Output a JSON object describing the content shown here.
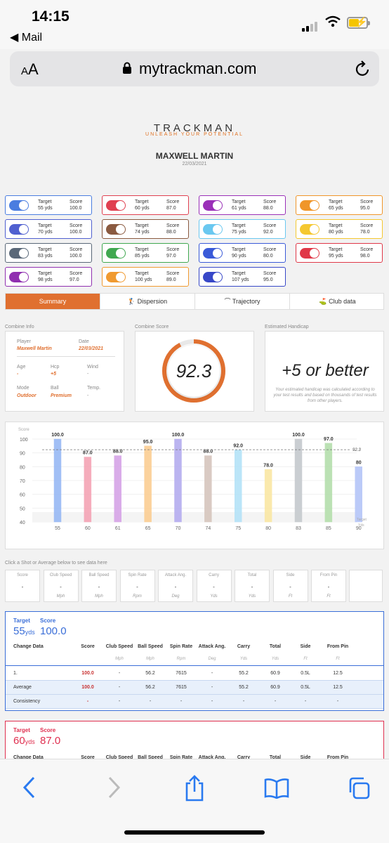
{
  "status": {
    "time": "14:15",
    "back_label": "Mail"
  },
  "browser": {
    "text_size": "AA",
    "url": "mytrackman.com"
  },
  "header": {
    "brand": "TRACKMAN",
    "tagline": "UNLEASH YOUR POTENTIAL",
    "player": "MAXWELL MARTIN",
    "date": "22/03/2021"
  },
  "shot_labels": {
    "target": "Target",
    "score": "Score"
  },
  "shots": [
    {
      "target": "55 yds",
      "score": "100.0",
      "color": "#4a7de0"
    },
    {
      "target": "60 yds",
      "score": "87.0",
      "color": "#e04050"
    },
    {
      "target": "61 yds",
      "score": "88.0",
      "color": "#9a30b8"
    },
    {
      "target": "65 yds",
      "score": "95.0",
      "color": "#f0962a"
    },
    {
      "target": "70 yds",
      "score": "100.0",
      "color": "#5060d0"
    },
    {
      "target": "74 yds",
      "score": "88.0",
      "color": "#8a5a40"
    },
    {
      "target": "75 yds",
      "score": "92.0",
      "color": "#6ac8f0"
    },
    {
      "target": "80 yds",
      "score": "78.0",
      "color": "#f5c830"
    },
    {
      "target": "83 yds",
      "score": "100.0",
      "color": "#5a6878"
    },
    {
      "target": "85 yds",
      "score": "97.0",
      "color": "#40a850"
    },
    {
      "target": "90 yds",
      "score": "80.0",
      "color": "#3a5ad8"
    },
    {
      "target": "95 yds",
      "score": "98.0",
      "color": "#e03848"
    },
    {
      "target": "98 yds",
      "score": "97.0",
      "color": "#9030b0"
    },
    {
      "target": "100 yds",
      "score": "89.0",
      "color": "#f09a30"
    },
    {
      "target": "107 yds",
      "score": "95.0",
      "color": "#3848c8"
    }
  ],
  "tabs": [
    {
      "label": "Summary",
      "icon": "none"
    },
    {
      "label": "Dispersion",
      "icon": "golfer-icon"
    },
    {
      "label": "Trajectory",
      "icon": "arc-icon"
    },
    {
      "label": "Club data",
      "icon": "club-icon"
    }
  ],
  "combine_info": {
    "section": "Combine Info",
    "player_label": "Player",
    "player": "Maxwell Martin",
    "date_label": "Date",
    "date": "22/03/2021",
    "age_label": "Age",
    "age": "-",
    "hcp_label": "Hcp",
    "hcp": "+5",
    "wind_label": "Wind",
    "wind": "-",
    "mode_label": "Mode",
    "mode": "Outdoor",
    "ball_label": "Ball",
    "ball": "Premium",
    "temp_label": "Temp.",
    "temp": "-"
  },
  "combine_score": {
    "section": "Combine Score",
    "value": "92.3",
    "fraction": 0.923
  },
  "handicap": {
    "section": "Estimated Handicap",
    "value": "+5 or better",
    "note": "Your estimated handicap was calculated according to your test results and based on thousands of test results from other players."
  },
  "chart_data": {
    "type": "bar",
    "ylabel": "Score",
    "xunit_top": "Target",
    "xunit_bottom": "Yds",
    "ylim": [
      40,
      100
    ],
    "yticks": [
      40,
      50,
      60,
      70,
      80,
      90,
      100
    ],
    "categories": [
      "55",
      "60",
      "61",
      "65",
      "70",
      "74",
      "75",
      "80",
      "83",
      "85",
      "90"
    ],
    "values": [
      100,
      87,
      88,
      95,
      100,
      88,
      92,
      78,
      100,
      97,
      80
    ],
    "value_labels": [
      "100.0",
      "87.0",
      "88.0",
      "95.0",
      "100.0",
      "88.0",
      "92.0",
      "78.0",
      "100.0",
      "97.0",
      "80"
    ],
    "colors": [
      "#9cbcf5",
      "#f5a8b8",
      "#d8a8e8",
      "#fbd098",
      "#b8b0f0",
      "#d8c8c0",
      "#b8e4f8",
      "#fae8a8",
      "#c8ccd0",
      "#b8e0b0",
      "#b8c8f8"
    ],
    "average": 92.3,
    "average_label": "92.3"
  },
  "metrics": {
    "hint": "Click a Shot or Average below to see data here",
    "items": [
      {
        "label": "Score",
        "value": "-",
        "unit": ""
      },
      {
        "label": "Club Speed",
        "value": "-",
        "unit": "Mph"
      },
      {
        "label": "Ball Speed",
        "value": "-",
        "unit": "Mph"
      },
      {
        "label": "Spin Rate",
        "value": "-",
        "unit": "Rpm"
      },
      {
        "label": "Attack Ang.",
        "value": "-",
        "unit": "Deg"
      },
      {
        "label": "Carry",
        "value": "-",
        "unit": "Yds"
      },
      {
        "label": "Total",
        "value": "-",
        "unit": "Yds"
      },
      {
        "label": "Side",
        "value": "-",
        "unit": "Ft"
      },
      {
        "label": "From Pin",
        "value": "-",
        "unit": "Ft"
      }
    ]
  },
  "table": {
    "headers": [
      "Change Data",
      "Score",
      "Club Speed",
      "Ball Speed",
      "Spin Rate",
      "Attack Ang.",
      "Carry",
      "Total",
      "Side",
      "From Pin"
    ],
    "units": [
      "",
      "",
      "Mph",
      "Mph",
      "Rpm",
      "Deg",
      "Yds",
      "Yds",
      "Ft",
      "Ft"
    ]
  },
  "target_cards": [
    {
      "target_label": "Target",
      "score_label": "Score",
      "target": "55",
      "unit": "yds",
      "score": "100.0",
      "color": "#3a6ed8",
      "rows": [
        [
          "1.",
          "100.0",
          "-",
          "56.2",
          "7615",
          "-",
          "55.2",
          "60.9",
          "0.5L",
          "12.5"
        ],
        [
          "Average",
          "100.0",
          "-",
          "56.2",
          "7615",
          "-",
          "55.2",
          "60.9",
          "0.5L",
          "12.5"
        ],
        [
          "Consistency",
          "-",
          "-",
          "-",
          "-",
          "-",
          "-",
          "-",
          "-",
          "-"
        ]
      ]
    },
    {
      "target_label": "Target",
      "score_label": "Score",
      "target": "60",
      "unit": "yds",
      "score": "87.0",
      "color": "#e03050"
    }
  ]
}
